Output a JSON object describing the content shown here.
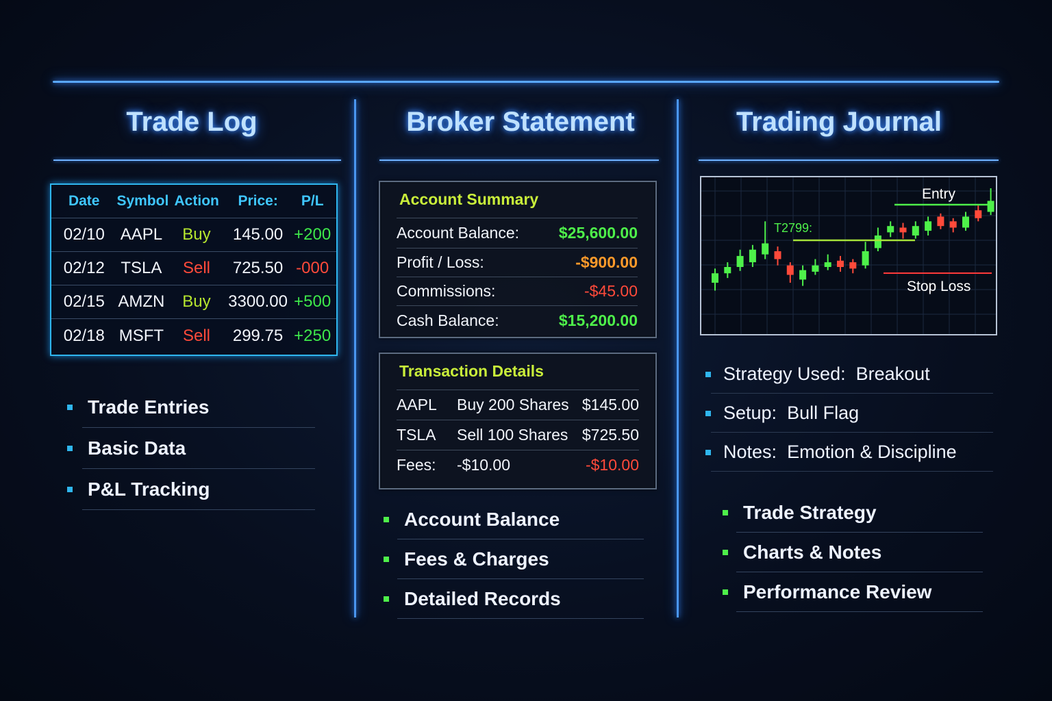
{
  "sections": {
    "trade_log": {
      "title": "Trade Log",
      "headers": [
        "Date",
        "Symbol",
        "Action",
        "Price:",
        "P/L"
      ],
      "rows": [
        {
          "date": "02/10",
          "symbol": "AAPL",
          "action": "Buy",
          "price": "145.00",
          "pl": "+200"
        },
        {
          "date": "02/12",
          "symbol": "TSLA",
          "action": "Sell",
          "price": "725.50",
          "pl": "-000"
        },
        {
          "date": "02/15",
          "symbol": "AMZN",
          "action": "Buy",
          "price": "3300.00",
          "pl": "+500"
        },
        {
          "date": "02/18",
          "symbol": "MSFT",
          "action": "Sell",
          "price": "299.75",
          "pl": "+250"
        }
      ],
      "features": [
        "Trade Entries",
        "Basic Data",
        "P&L Tracking"
      ]
    },
    "broker": {
      "title": "Broker Statement",
      "summary_title": "Account Summary",
      "summary": [
        {
          "label": "Account Balance:",
          "value": "$25,600.00"
        },
        {
          "label": "Profit / Loss:",
          "value": "-$900.00"
        },
        {
          "label": "Commissions:",
          "value": "-$45.00"
        },
        {
          "label": "Cash Balance:",
          "value": "$15,200.00"
        }
      ],
      "transactions_title": "Transaction Details",
      "transactions": [
        {
          "symbol": "AAPL",
          "desc": "Buy 200 Shares",
          "amount": "$145.00"
        },
        {
          "symbol": "TSLA",
          "desc": "Sell 100 Shares",
          "amount": "$725.50"
        },
        {
          "symbol": "Fees:",
          "desc": "-$10.00",
          "amount": "-$10.00"
        }
      ],
      "features": [
        "Account Balance",
        "Fees & Charges",
        "Detailed Records"
      ]
    },
    "journal": {
      "title": "Trading Journal",
      "chart_labels": {
        "entry": "Entry",
        "stop": "Stop Loss",
        "target": "T2799:"
      },
      "notes": [
        {
          "label": "Strategy Used:",
          "value": "Breakout"
        },
        {
          "label": "Setup:",
          "value": "Bull Flag"
        },
        {
          "label": "Notes:",
          "value": "Emotion & Discipline"
        }
      ],
      "features": [
        "Trade Strategy",
        "Charts & Notes",
        "Performance Review"
      ]
    }
  },
  "colors": {
    "accent_blue": "#4a96f0",
    "cyan": "#2fb6ee",
    "green": "#4ef04a",
    "red": "#ff4a3a",
    "lime": "#c9ee3a"
  },
  "candles": [
    {
      "o": 40,
      "c": 52,
      "h": 58,
      "l": 30
    },
    {
      "o": 52,
      "c": 60,
      "h": 66,
      "l": 46
    },
    {
      "o": 60,
      "c": 74,
      "h": 82,
      "l": 55
    },
    {
      "o": 66,
      "c": 82,
      "h": 88,
      "l": 60
    },
    {
      "o": 76,
      "c": 90,
      "h": 118,
      "l": 70
    },
    {
      "o": 80,
      "c": 70,
      "h": 86,
      "l": 62
    },
    {
      "o": 62,
      "c": 50,
      "h": 66,
      "l": 40
    },
    {
      "o": 44,
      "c": 56,
      "h": 62,
      "l": 36
    },
    {
      "o": 54,
      "c": 62,
      "h": 70,
      "l": 50
    },
    {
      "o": 60,
      "c": 66,
      "h": 76,
      "l": 56
    },
    {
      "o": 68,
      "c": 60,
      "h": 74,
      "l": 54
    },
    {
      "o": 66,
      "c": 58,
      "h": 70,
      "l": 52
    },
    {
      "o": 62,
      "c": 80,
      "h": 92,
      "l": 58
    },
    {
      "o": 84,
      "c": 100,
      "h": 110,
      "l": 80
    },
    {
      "o": 104,
      "c": 112,
      "h": 118,
      "l": 98
    },
    {
      "o": 110,
      "c": 104,
      "h": 116,
      "l": 96
    },
    {
      "o": 100,
      "c": 112,
      "h": 118,
      "l": 96
    },
    {
      "o": 106,
      "c": 118,
      "h": 124,
      "l": 100
    },
    {
      "o": 124,
      "c": 112,
      "h": 128,
      "l": 108
    },
    {
      "o": 118,
      "c": 110,
      "h": 122,
      "l": 104
    },
    {
      "o": 110,
      "c": 124,
      "h": 130,
      "l": 106
    },
    {
      "o": 132,
      "c": 122,
      "h": 138,
      "l": 118
    },
    {
      "o": 130,
      "c": 144,
      "h": 160,
      "l": 126
    }
  ]
}
